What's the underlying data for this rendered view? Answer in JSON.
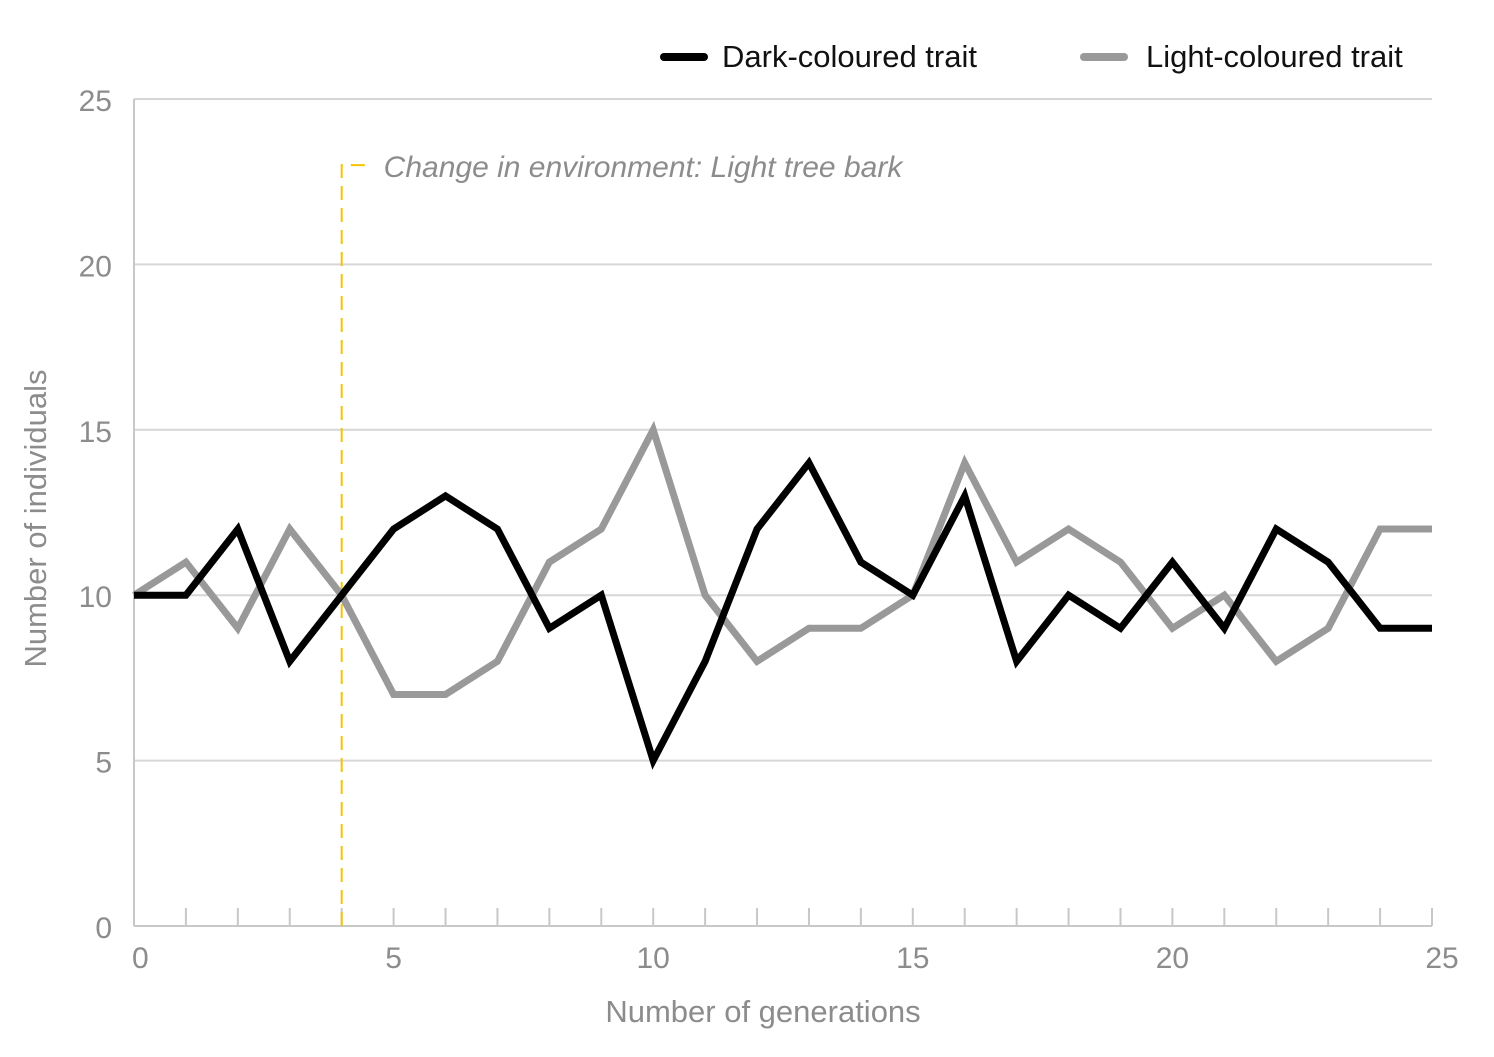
{
  "chart_data": {
    "type": "line",
    "title": "",
    "xlabel": "Number of generations",
    "ylabel": "Number of individuals",
    "xlim": [
      0,
      25
    ],
    "ylim": [
      0,
      25
    ],
    "x_ticks": [
      "0",
      "5",
      "10",
      "15",
      "20",
      "25"
    ],
    "y_ticks": [
      "0",
      "5",
      "10",
      "15",
      "20",
      "25"
    ],
    "grid": "horizontal",
    "legend_position": "top-right",
    "x": [
      0,
      1,
      2,
      3,
      4,
      5,
      6,
      7,
      8,
      9,
      10,
      11,
      12,
      13,
      14,
      15,
      16,
      17,
      18,
      19,
      20,
      21,
      22,
      23,
      24,
      25
    ],
    "series": [
      {
        "name": "Dark-coloured trait",
        "color": "#000000",
        "values": [
          10,
          10,
          12,
          8,
          10,
          12,
          13,
          12,
          9,
          10,
          5,
          8,
          12,
          14,
          11,
          10,
          13,
          8,
          10,
          9,
          11,
          9,
          12,
          11,
          9,
          9
        ]
      },
      {
        "name": "Light-coloured trait",
        "color": "#999999",
        "values": [
          10,
          11,
          9,
          12,
          10,
          7,
          7,
          8,
          11,
          12,
          15,
          10,
          8,
          9,
          9,
          10,
          14,
          11,
          12,
          11,
          9,
          10,
          8,
          9,
          12,
          12
        ]
      }
    ],
    "annotation": {
      "text": "Change in environment: Light tree bark",
      "x": 4,
      "y": 23,
      "color": "#f5c400"
    }
  }
}
